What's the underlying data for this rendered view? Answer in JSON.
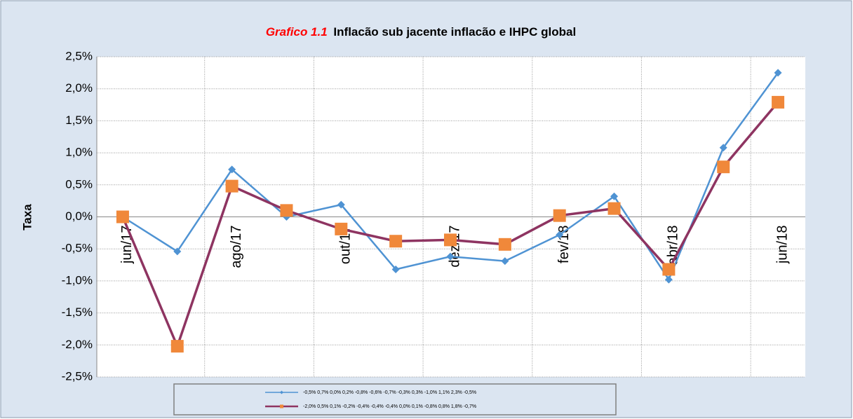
{
  "chart_data": {
    "type": "line",
    "figure_label": "Grafico 1.1",
    "title": "Inflacão sub jacente inflacão e IHPC global",
    "y_label": "Taxa",
    "categories": [
      "jun/17",
      null,
      "ago/17",
      null,
      "out/17",
      null,
      "dez/17",
      null,
      "fev/18",
      null,
      "abr/18",
      null,
      "jun/18"
    ],
    "series": [
      {
        "name": "-0,5% 0,7% 0,0% 0,2% -0,8% -0,6% -0,7% -0,3% 0,3% -1,0% 1,1% 2,3% -0,5%",
        "color": "#4f93d3",
        "marker": "diamond",
        "values": [
          0.0,
          -0.54,
          0.74,
          0.0,
          0.19,
          -0.82,
          -0.62,
          -0.69,
          -0.28,
          0.32,
          -0.98,
          1.08,
          2.25
        ]
      },
      {
        "name": "-2,0% 0,5% 0,1% -0,2% -0,4% -0,4% -0,4% 0,0% 0,1% -0,8% 0,8% 1,8% -0,7%",
        "color": "#8e3461",
        "marker_color": "#f0883a",
        "marker": "square",
        "values": [
          0.0,
          -2.02,
          0.48,
          0.1,
          -0.19,
          -0.38,
          -0.36,
          -0.43,
          0.02,
          0.13,
          -0.82,
          0.78,
          1.79
        ]
      }
    ],
    "ylim": [
      -2.5,
      2.5
    ],
    "yticks": [
      {
        "value": 2.5,
        "label": "2,5%"
      },
      {
        "value": 2.0,
        "label": "2,0%"
      },
      {
        "value": 1.5,
        "label": "1,5%"
      },
      {
        "value": 1.0,
        "label": "1,0%"
      },
      {
        "value": 0.5,
        "label": "0,5%"
      },
      {
        "value": 0.0,
        "label": "0,0%"
      },
      {
        "value": -0.5,
        "label": "-0,5%"
      },
      {
        "value": -1.0,
        "label": "-1,0%"
      },
      {
        "value": -1.5,
        "label": "-1,5%"
      },
      {
        "value": -2.0,
        "label": "-2,0%"
      },
      {
        "value": -2.5,
        "label": "-2,5%"
      }
    ],
    "grid": true
  }
}
